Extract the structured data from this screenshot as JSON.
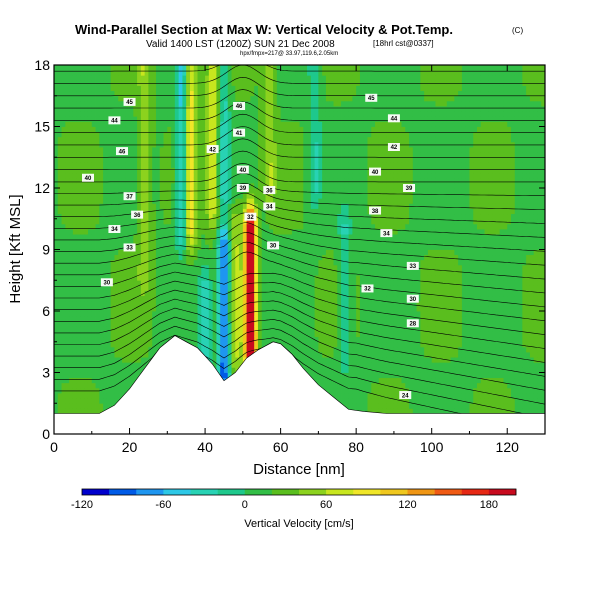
{
  "chart_data": {
    "type": "heatmap",
    "title": "Wind-Parallel Section at Max W: Vertical Velocity & Pot.Temp.",
    "title_mark": "(C)",
    "subtitle": "Valid 1400 LST (1200Z) SUN 21 Dec 2008",
    "subtitle_tag": "[18hrl cst@0337]",
    "subtitle2": "hpx/fmpx=217@ 33.97,119.6,2.05km",
    "xlabel": "Distance [nm]",
    "ylabel": "Height [Kft MSL]",
    "xlim": [
      0,
      130
    ],
    "ylim": [
      0,
      18
    ],
    "xticks": [
      0,
      20,
      40,
      60,
      80,
      100,
      120
    ],
    "yticks": [
      0,
      3,
      6,
      9,
      12,
      15,
      18
    ],
    "colorbar": {
      "label": "Vertical Velocity [cm/s]",
      "range": [
        -120,
        200
      ],
      "tick_values": [
        -120,
        -60,
        0,
        60,
        120,
        180
      ],
      "colors": [
        "#0000cd",
        "#005ae6",
        "#1e96f0",
        "#2dc8e6",
        "#28d2b4",
        "#1ec88c",
        "#32be46",
        "#5abe1e",
        "#8cd21e",
        "#c8e61e",
        "#f0e628",
        "#f0c81e",
        "#f09614",
        "#f05a14",
        "#e62814",
        "#c80a1e"
      ]
    },
    "terrain": [
      [
        0,
        1
      ],
      [
        12,
        1
      ],
      [
        16,
        1.4
      ],
      [
        20,
        2.2
      ],
      [
        24,
        3.2
      ],
      [
        28,
        4.2
      ],
      [
        32,
        4.8
      ],
      [
        35,
        4.5
      ],
      [
        38,
        4.2
      ],
      [
        40,
        3.8
      ],
      [
        42,
        3.4
      ],
      [
        45,
        2.6
      ],
      [
        48,
        3.0
      ],
      [
        51,
        3.7
      ],
      [
        54,
        4.1
      ],
      [
        58,
        4.5
      ],
      [
        60,
        4.4
      ],
      [
        63,
        3.9
      ],
      [
        66,
        3.2
      ],
      [
        70,
        2.4
      ],
      [
        74,
        1.8
      ],
      [
        78,
        1.2
      ],
      [
        82,
        1.1
      ],
      [
        88,
        1.0
      ],
      [
        100,
        1.0
      ],
      [
        130,
        1.0
      ]
    ],
    "vertical_velocity_features": [
      {
        "x": 40,
        "y0": 0,
        "y1": 7,
        "w": -50
      },
      {
        "x": 45,
        "y0": 3,
        "y1": 9,
        "w": -110
      },
      {
        "x": 48,
        "y0": 4,
        "y1": 10,
        "w": 45
      },
      {
        "x": 52,
        "y0": 4,
        "y1": 10,
        "w": 200
      },
      {
        "x": 55,
        "y0": 6,
        "y1": 10,
        "w": -15
      },
      {
        "x": 24,
        "y0": 8,
        "y1": 18,
        "w": 40
      },
      {
        "x": 34,
        "y0": 10,
        "y1": 18,
        "w": -70
      },
      {
        "x": 36,
        "y0": 10,
        "y1": 18,
        "w": 80
      },
      {
        "x": 42,
        "y0": 11,
        "y1": 18,
        "w": 55
      },
      {
        "x": 45,
        "y0": 12,
        "y1": 18,
        "w": -45
      },
      {
        "x": 57,
        "y0": 12,
        "y1": 18,
        "w": 40
      },
      {
        "x": 69,
        "y0": 12,
        "y1": 18,
        "w": -40
      },
      {
        "x": 77,
        "y0": 4,
        "y1": 10,
        "w": -40
      }
    ],
    "isentrope_labels": [
      {
        "text": "45",
        "x": 20,
        "y": 16.2
      },
      {
        "text": "44",
        "x": 16,
        "y": 15.3
      },
      {
        "text": "46",
        "x": 18,
        "y": 13.8
      },
      {
        "text": "40",
        "x": 9,
        "y": 12.5
      },
      {
        "text": "37",
        "x": 20,
        "y": 11.6
      },
      {
        "text": "36",
        "x": 22,
        "y": 10.7
      },
      {
        "text": "34",
        "x": 16,
        "y": 10.0
      },
      {
        "text": "33",
        "x": 20,
        "y": 9.1
      },
      {
        "text": "30",
        "x": 14,
        "y": 7.4
      },
      {
        "text": "46",
        "x": 49,
        "y": 16.0
      },
      {
        "text": "41",
        "x": 49,
        "y": 14.7
      },
      {
        "text": "42",
        "x": 42,
        "y": 13.9
      },
      {
        "text": "40",
        "x": 50,
        "y": 12.9
      },
      {
        "text": "39",
        "x": 50,
        "y": 12.0
      },
      {
        "text": "36",
        "x": 57,
        "y": 11.9
      },
      {
        "text": "34",
        "x": 57,
        "y": 11.1
      },
      {
        "text": "32",
        "x": 52,
        "y": 10.6
      },
      {
        "text": "30",
        "x": 58,
        "y": 9.2
      },
      {
        "text": "45",
        "x": 84,
        "y": 16.4
      },
      {
        "text": "44",
        "x": 90,
        "y": 15.4
      },
      {
        "text": "42",
        "x": 90,
        "y": 14.0
      },
      {
        "text": "40",
        "x": 85,
        "y": 12.8
      },
      {
        "text": "39",
        "x": 94,
        "y": 12.0
      },
      {
        "text": "38",
        "x": 85,
        "y": 10.9
      },
      {
        "text": "34",
        "x": 88,
        "y": 9.8
      },
      {
        "text": "33",
        "x": 95,
        "y": 8.2
      },
      {
        "text": "32",
        "x": 83,
        "y": 7.1
      },
      {
        "text": "30",
        "x": 95,
        "y": 6.6
      },
      {
        "text": "28",
        "x": 95,
        "y": 5.4
      },
      {
        "text": "24",
        "x": 93,
        "y": 1.9
      }
    ]
  }
}
